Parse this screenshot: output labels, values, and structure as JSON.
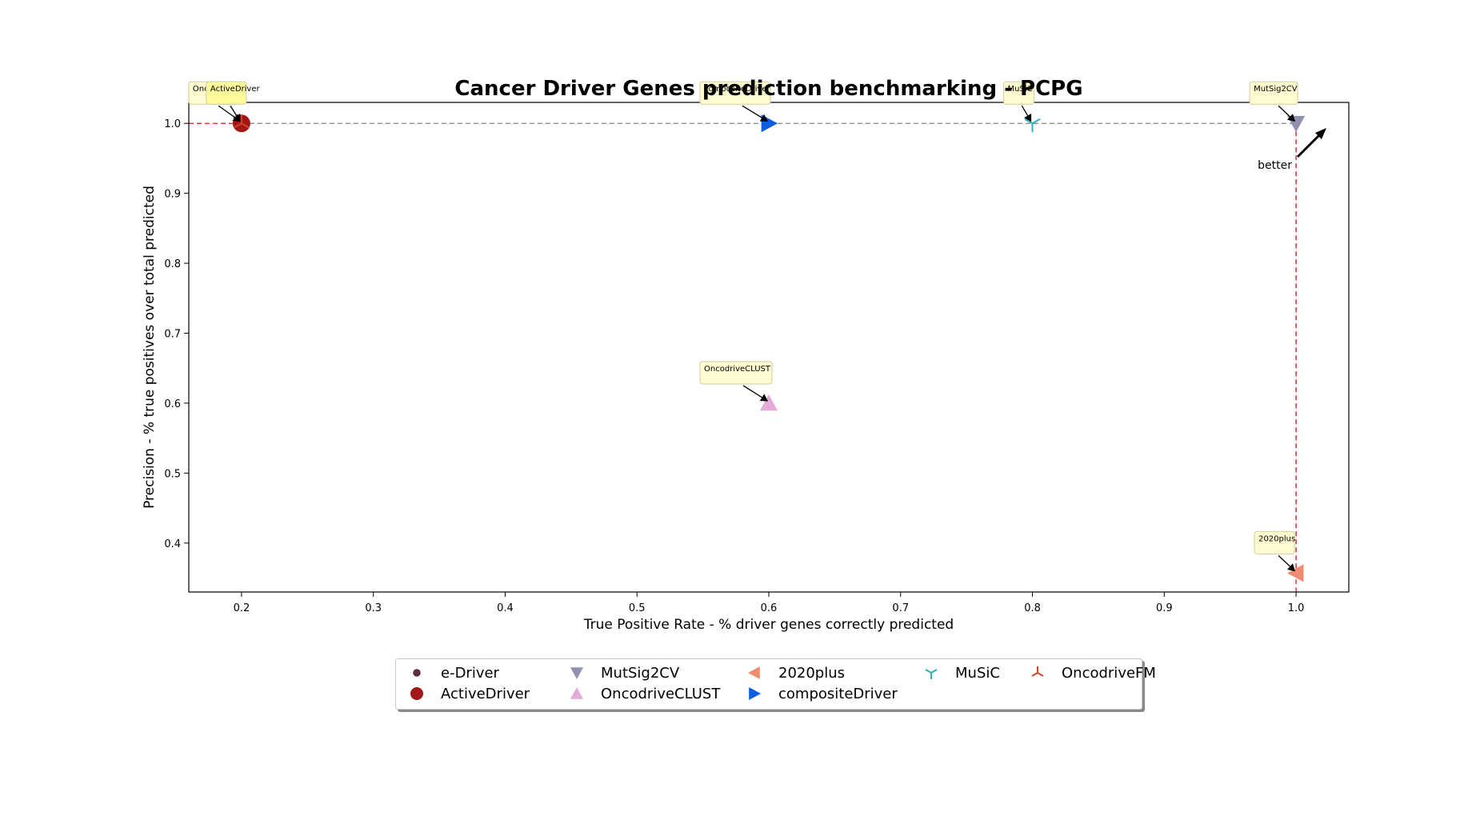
{
  "chart_data": {
    "type": "scatter",
    "title": "Cancer Driver Genes prediction benchmarking - PCPG",
    "xlabel": "True Positive Rate - % driver genes correctly predicted",
    "ylabel": "Precision - % true positives over total predicted",
    "xlim": [
      0.16,
      1.04
    ],
    "ylim": [
      0.33,
      1.03
    ],
    "xticks": [
      "0.2",
      "0.3",
      "0.4",
      "0.5",
      "0.6",
      "0.7",
      "0.8",
      "0.9",
      "1.0"
    ],
    "yticks": [
      "0.4",
      "0.5",
      "0.6",
      "0.7",
      "0.8",
      "0.9",
      "1.0"
    ],
    "grid": false,
    "legend_position": "bottom-center",
    "pareto_frontier": [
      [
        0.2,
        1.0
      ],
      [
        1.0,
        1.0
      ],
      [
        1.0,
        0.357
      ]
    ],
    "better_label": "better",
    "points": [
      {
        "name": "e-Driver",
        "x": 0.2,
        "y": 1.0,
        "marker": "point",
        "color": "#5c2e46",
        "plotted": false
      },
      {
        "name": "ActiveDriver",
        "x": 0.2,
        "y": 1.0,
        "marker": "circle",
        "color": "#a41515",
        "plotted": true
      },
      {
        "name": "MutSig2CV",
        "x": 1.0,
        "y": 1.0,
        "marker": "triangle-down",
        "color": "#9290b0",
        "plotted": true
      },
      {
        "name": "OncodriveCLUST",
        "x": 0.6,
        "y": 0.6,
        "marker": "triangle-up",
        "color": "#e4aad8",
        "plotted": true
      },
      {
        "name": "2020plus",
        "x": 1.0,
        "y": 0.357,
        "marker": "triangle-left",
        "color": "#f08b6f",
        "plotted": true
      },
      {
        "name": "compositeDriver",
        "x": 0.6,
        "y": 1.0,
        "marker": "triangle-right",
        "color": "#0f5ee0",
        "plotted": true
      },
      {
        "name": "MuSiC",
        "x": 0.8,
        "y": 1.0,
        "marker": "tri-down",
        "color": "#2bb3c0",
        "plotted": true
      },
      {
        "name": "OncodriveFM",
        "x": 0.2,
        "y": 1.0,
        "marker": "tri-up",
        "color": "#d0442a",
        "plotted": true
      }
    ],
    "annotations": [
      {
        "text": "OncodriveFM",
        "x": 0.2,
        "y": 1.0,
        "bg": "#fffbd0"
      },
      {
        "text": "ActiveDriver",
        "x": 0.2,
        "y": 1.0,
        "bg": "#fffb9c"
      },
      {
        "text": "compositeDriver",
        "x": 0.6,
        "y": 1.0,
        "bg": "#fffbd0"
      },
      {
        "text": "MuSiC",
        "x": 0.8,
        "y": 1.0,
        "bg": "#fffbd0"
      },
      {
        "text": "MutSig2CV",
        "x": 1.0,
        "y": 1.0,
        "bg": "#fffbd0"
      },
      {
        "text": "OncodriveCLUST",
        "x": 0.6,
        "y": 0.6,
        "bg": "#fffbd0"
      },
      {
        "text": "2020plus",
        "x": 1.0,
        "y": 0.357,
        "bg": "#fffbd0"
      }
    ]
  }
}
